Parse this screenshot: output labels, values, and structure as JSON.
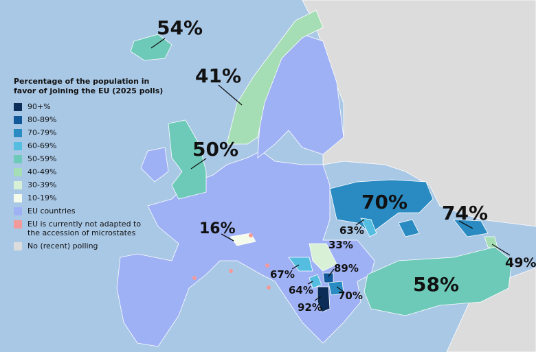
{
  "legend": {
    "title_lines": [
      "Percentage of the population in",
      "favor of joining the EU (2025 polls)"
    ],
    "items": [
      {
        "label": "90+%",
        "color": "#0b2d57"
      },
      {
        "label": "80-89%",
        "color": "#11599a"
      },
      {
        "label": "70-79%",
        "color": "#2a8bc2"
      },
      {
        "label": "60-69%",
        "color": "#55bde0"
      },
      {
        "label": "50-59%",
        "color": "#6ecab8"
      },
      {
        "label": "40-49%",
        "color": "#a5ddb4"
      },
      {
        "label": "30-39%",
        "color": "#d8f0d6"
      },
      {
        "label": "10-19%",
        "color": "#f4fbea"
      },
      {
        "label": "EU countries",
        "color": "#9fb1f5"
      },
      {
        "label": "EU is currently not adapted to the accession of microstates",
        "color": "#f29a9a"
      },
      {
        "label": "No (recent) polling",
        "color": "#dcdcdc"
      }
    ]
  },
  "map_labels": [
    "54%",
    "41%",
    "50%",
    "16%",
    "70%",
    "63%",
    "33%",
    "74%",
    "49%",
    "58%",
    "67%",
    "89%",
    "64%",
    "70%",
    "92%"
  ]
}
